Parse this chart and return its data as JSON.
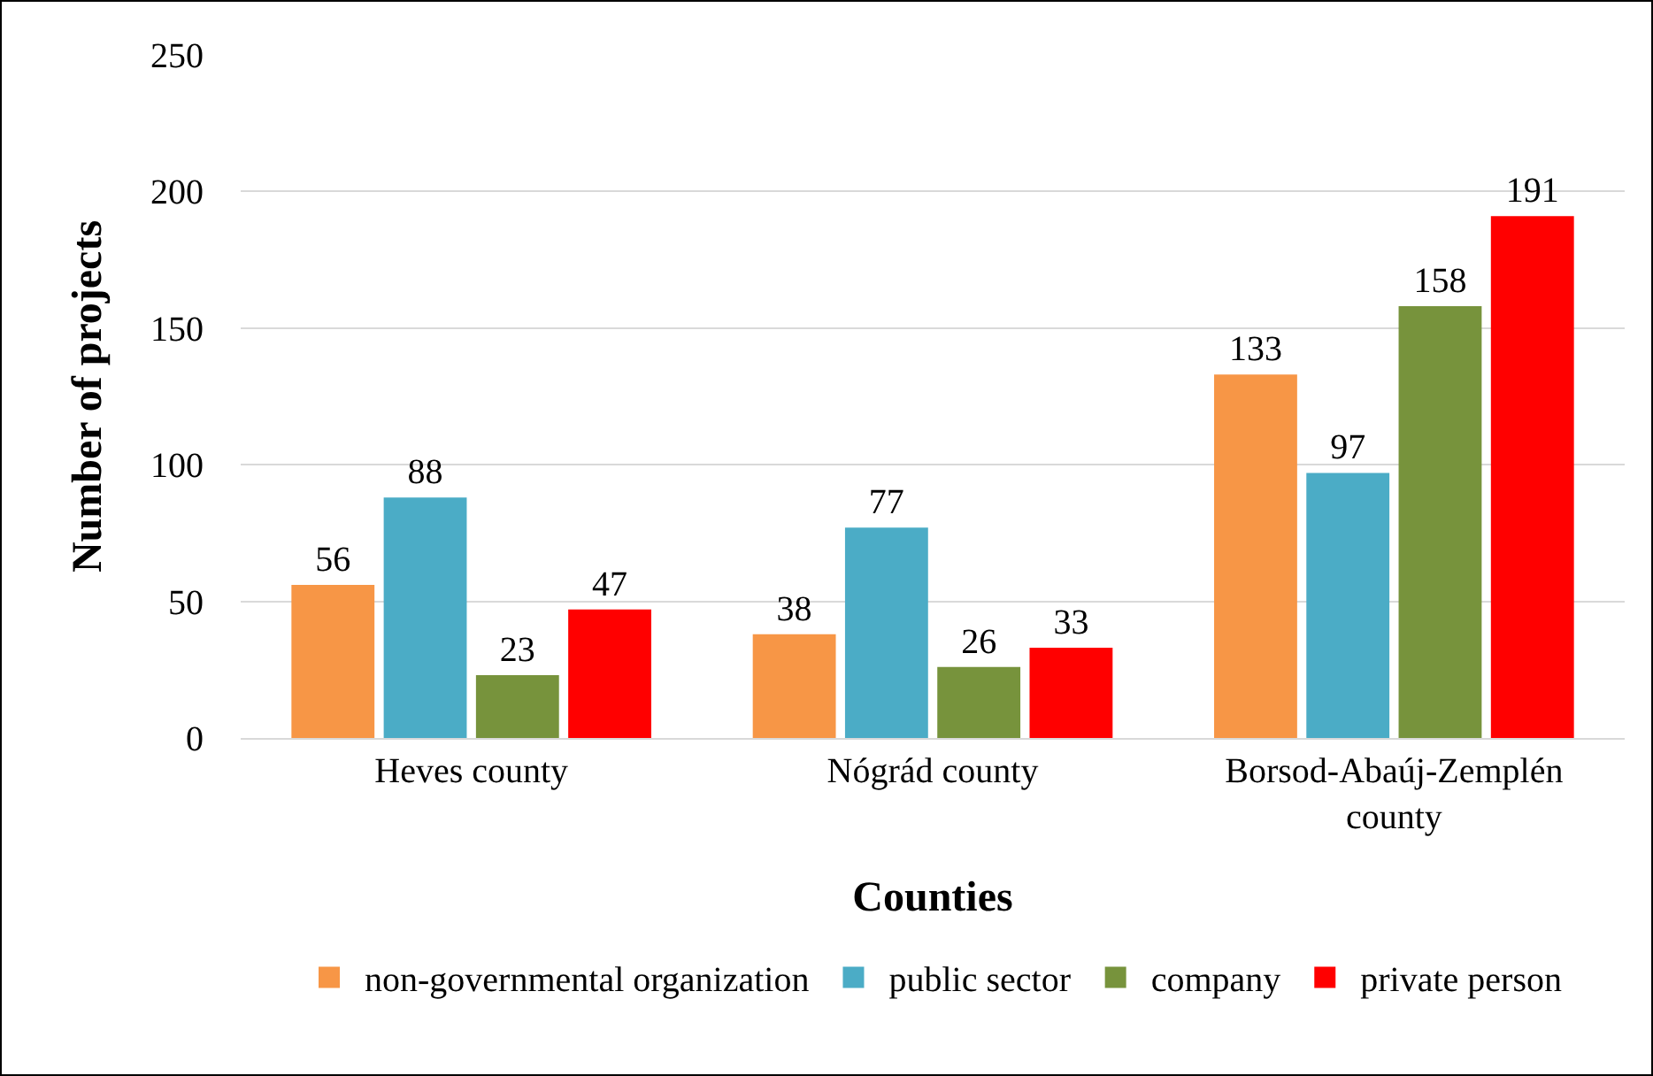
{
  "chart_data": {
    "type": "bar",
    "xlabel": "Counties",
    "ylabel": "Number of projects",
    "categories": [
      "Heves county",
      "Nógrád county",
      "Borsod-Abaúj-Zemplén county"
    ],
    "series": [
      {
        "name": "non-governmental organization",
        "color": "#f79646",
        "values": [
          56,
          38,
          133
        ]
      },
      {
        "name": "public sector",
        "color": "#4bacc6",
        "values": [
          88,
          77,
          97
        ]
      },
      {
        "name": "company",
        "color": "#77933c",
        "values": [
          23,
          26,
          158
        ]
      },
      {
        "name": "private person",
        "color": "#ff0000",
        "values": [
          47,
          33,
          191
        ]
      }
    ],
    "ylim": [
      0,
      250
    ],
    "yticks": [
      0,
      50,
      100,
      150,
      200,
      250
    ],
    "grid": "y",
    "legend": "bottom",
    "data_labels": true
  }
}
